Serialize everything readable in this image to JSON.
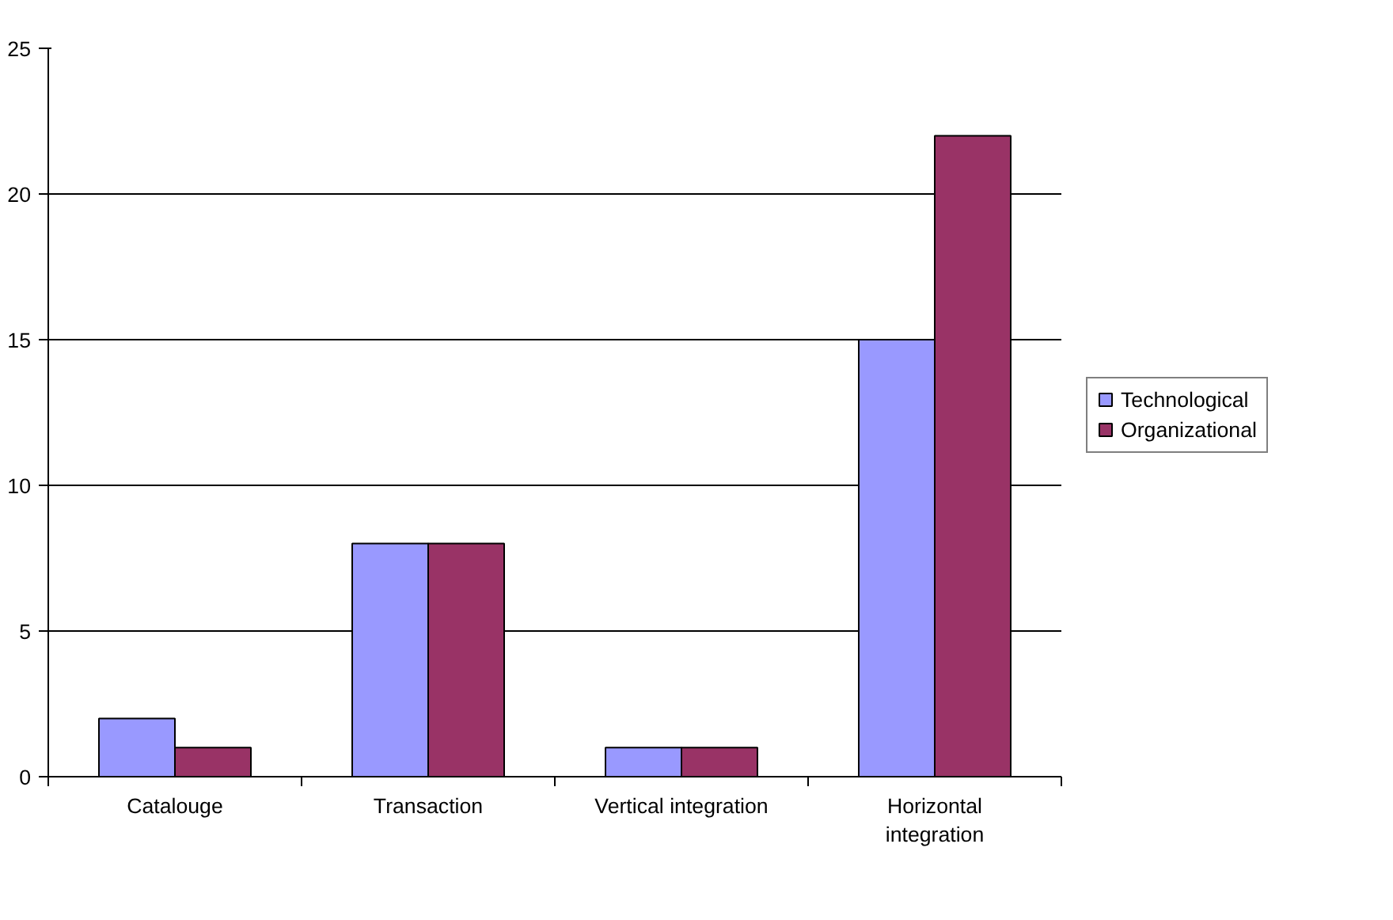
{
  "chart_data": {
    "type": "bar",
    "categories": [
      "Catalouge",
      "Transaction",
      "Vertical integration",
      "Horizontal integration"
    ],
    "series": [
      {
        "name": "Technological",
        "color": "#9999ff",
        "values": [
          2,
          8,
          1,
          15
        ]
      },
      {
        "name": "Organizational",
        "color": "#993366",
        "values": [
          1,
          8,
          1,
          22
        ]
      }
    ],
    "ylim": [
      0,
      25
    ],
    "yticks": [
      0,
      5,
      10,
      15,
      20,
      25
    ],
    "grid": "y",
    "legend": "right"
  }
}
